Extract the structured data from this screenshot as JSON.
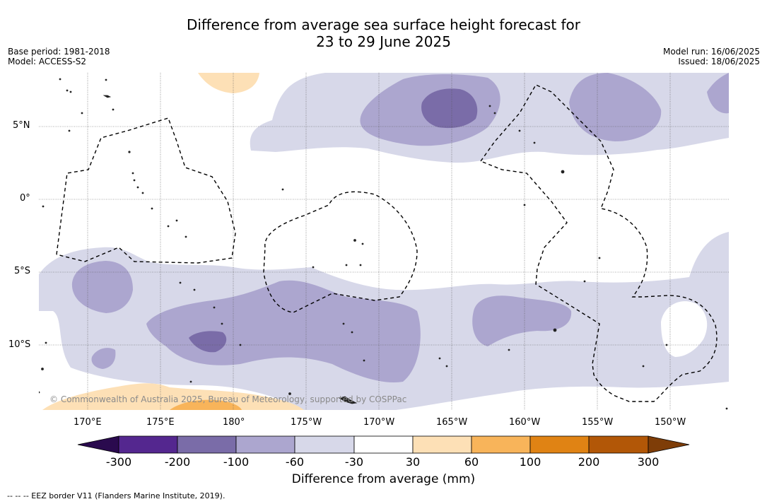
{
  "title_line1": "Difference from average sea surface height forecast for",
  "title_line2": "23 to 29 June 2025",
  "base_period": "Base period: 1981-2018",
  "model": "Model: ACCESS-S2",
  "model_run": "Model run: 16/06/2025",
  "issued": "Issued: 18/06/2025",
  "lat_ticks": [
    "5°N",
    "0°",
    "5°S",
    "10°S"
  ],
  "lon_ticks": [
    "170°E",
    "175°E",
    "180°",
    "175°W",
    "170°W",
    "165°W",
    "160°W",
    "155°W",
    "150°W"
  ],
  "copyright": "© Commonwealth of Australia 2025, Bureau of Meteorology, supported by COSPPac",
  "colorbar": {
    "title": "Difference from average (mm)",
    "labels": [
      "-300",
      "-200",
      "-100",
      "-60",
      "-30",
      "30",
      "60",
      "100",
      "200",
      "300"
    ],
    "colors": [
      "#2a0a4e",
      "#54278f",
      "#7a6ca8",
      "#aca6cf",
      "#d7d8e9",
      "#ffffff",
      "#fde0b6",
      "#f8b45a",
      "#e08314",
      "#b25707",
      "#7e3d08"
    ]
  },
  "footnote": "-- -- -- EEZ border V11 (Flanders Marine Institute, 2019).",
  "colors": {
    "light_purple": "#d7d8e9",
    "mid_purple": "#aca6cf",
    "dark_purple": "#7a6ca8",
    "light_orange": "#fde0b6",
    "mid_orange": "#f8b45a"
  }
}
